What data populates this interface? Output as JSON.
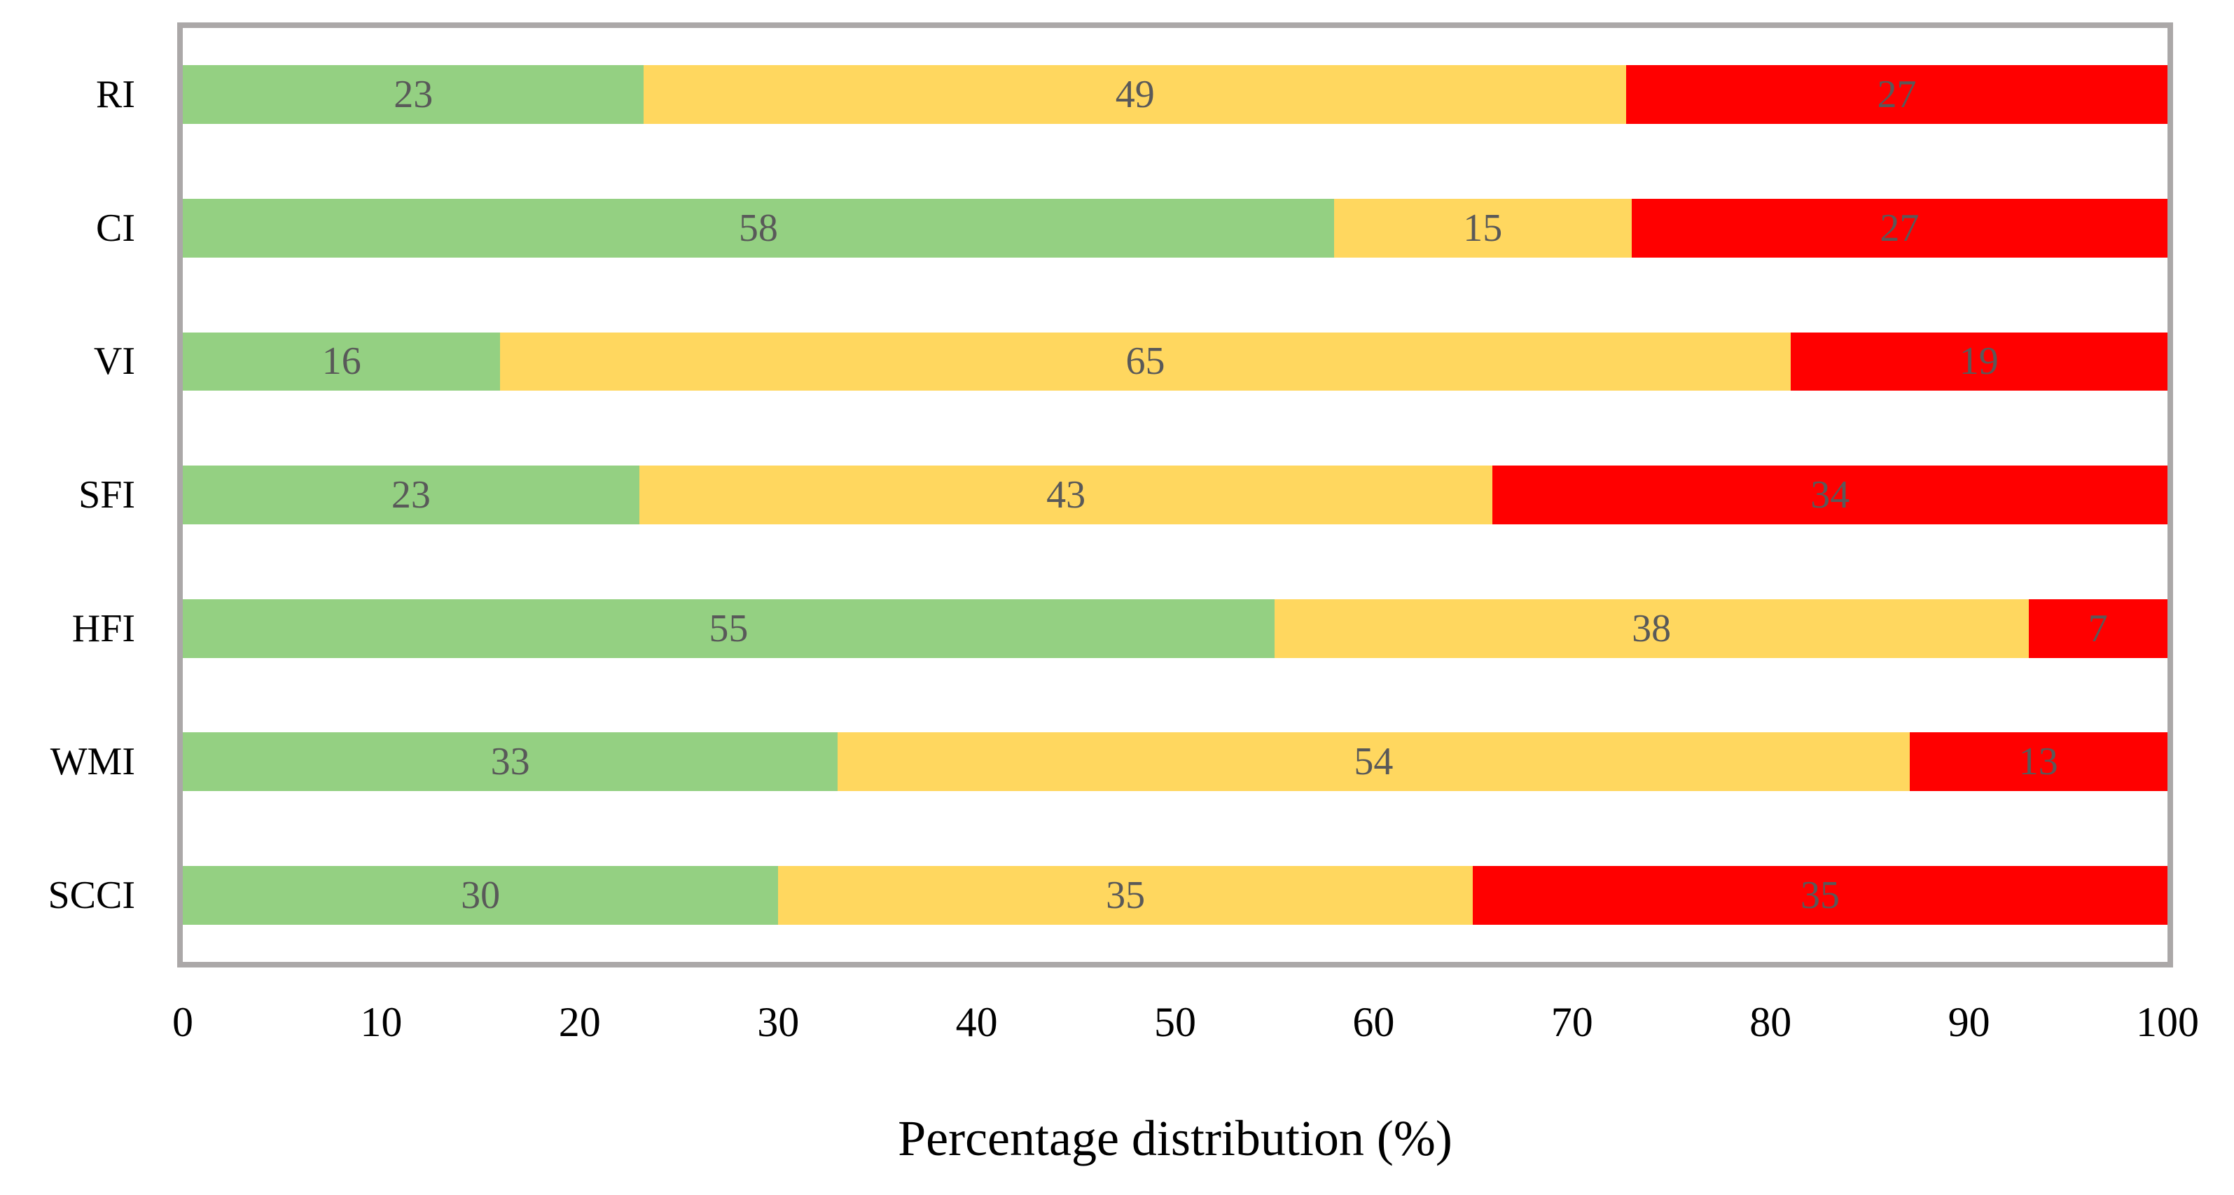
{
  "chart_data": {
    "type": "bar",
    "stacked": true,
    "orientation": "horizontal",
    "title": "",
    "xlabel": "Percentage distribution (%)",
    "ylabel": "",
    "categories": [
      "RI",
      "CI",
      "VI",
      "SFI",
      "HFI",
      "WMI",
      "SCCI"
    ],
    "series": [
      {
        "name": "green",
        "color": "#94D082",
        "values": [
          23,
          58,
          16,
          23,
          55,
          33,
          30
        ]
      },
      {
        "name": "yellow",
        "color": "#FFD75F",
        "values": [
          49,
          15,
          65,
          43,
          38,
          54,
          35
        ]
      },
      {
        "name": "red",
        "color": "#FF0000",
        "values": [
          27,
          27,
          19,
          34,
          7,
          13,
          35
        ]
      }
    ],
    "x_ticks": [
      0,
      10,
      20,
      30,
      40,
      50,
      60,
      70,
      80,
      90,
      100
    ],
    "xlim": [
      0,
      100
    ],
    "legend": "none",
    "grid": "off",
    "data_label_color": "#595959",
    "plot_border_color": "#ABA8A8",
    "axis_text_color": "#000000"
  }
}
